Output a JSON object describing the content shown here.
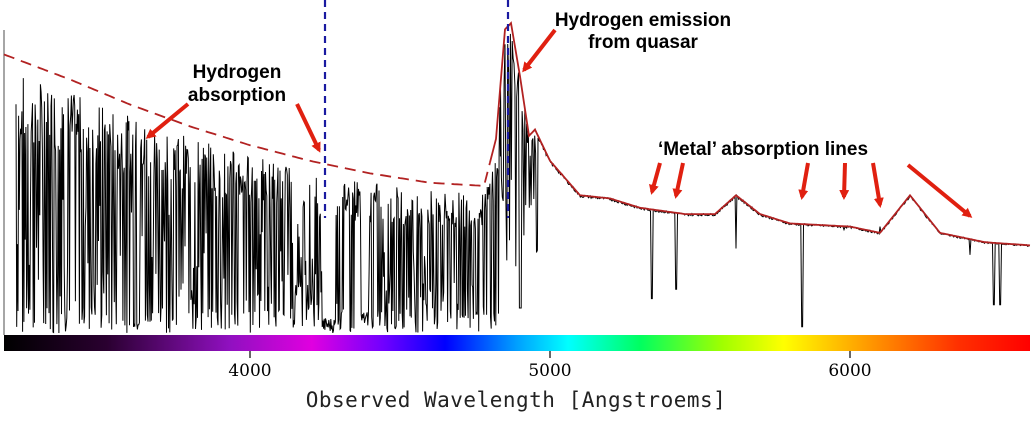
{
  "chart_data": {
    "type": "line",
    "title": "",
    "xlabel": "Observed Wavelength [Angstroems]",
    "ylabel": "",
    "xlim": [
      3180,
      6600
    ],
    "x_ticks": [
      4000,
      5000,
      6000
    ],
    "grid": false,
    "colors": {
      "spectrum": "#000000",
      "continuum_fit": "#b22222",
      "marker_lines": "#1a1aa0",
      "arrows": "#e02010"
    },
    "vertical_markers": [
      4250,
      4860
    ],
    "emission_peak": {
      "x": 4860
    },
    "metal_lines": [
      5340,
      5420,
      5620,
      5840,
      5980,
      6100,
      6400,
      6480,
      6500
    ],
    "continuum": [
      {
        "x": 3180,
        "y": 0.89
      },
      {
        "x": 3400,
        "y": 0.81
      },
      {
        "x": 3600,
        "y": 0.73
      },
      {
        "x": 3800,
        "y": 0.66
      },
      {
        "x": 4000,
        "y": 0.6
      },
      {
        "x": 4200,
        "y": 0.55
      },
      {
        "x": 4400,
        "y": 0.51
      },
      {
        "x": 4600,
        "y": 0.48
      },
      {
        "x": 4780,
        "y": 0.47
      },
      {
        "x": 4820,
        "y": 0.62
      },
      {
        "x": 4850,
        "y": 0.97
      },
      {
        "x": 4870,
        "y": 0.99
      },
      {
        "x": 4900,
        "y": 0.82
      },
      {
        "x": 4930,
        "y": 0.63
      },
      {
        "x": 4950,
        "y": 0.65
      },
      {
        "x": 5000,
        "y": 0.55
      },
      {
        "x": 5100,
        "y": 0.44
      },
      {
        "x": 5200,
        "y": 0.43
      },
      {
        "x": 5300,
        "y": 0.4
      },
      {
        "x": 5450,
        "y": 0.38
      },
      {
        "x": 5550,
        "y": 0.38
      },
      {
        "x": 5620,
        "y": 0.44
      },
      {
        "x": 5700,
        "y": 0.38
      },
      {
        "x": 5800,
        "y": 0.35
      },
      {
        "x": 6000,
        "y": 0.34
      },
      {
        "x": 6100,
        "y": 0.32
      },
      {
        "x": 6200,
        "y": 0.44
      },
      {
        "x": 6300,
        "y": 0.32
      },
      {
        "x": 6450,
        "y": 0.29
      },
      {
        "x": 6600,
        "y": 0.28
      }
    ],
    "annotations": [
      {
        "text_lines": [
          "Hydrogen",
          "absorption"
        ],
        "arrow_targets": [
          3600,
          4250
        ]
      },
      {
        "text_lines": [
          "Hydrogen emission",
          "from quasar"
        ],
        "arrow_targets": [
          4860
        ]
      },
      {
        "text_lines": [
          "‘Metal’ absorption lines"
        ],
        "arrow_targets": [
          5340,
          5420,
          5840,
          5980,
          6100,
          6400
        ]
      }
    ]
  }
}
